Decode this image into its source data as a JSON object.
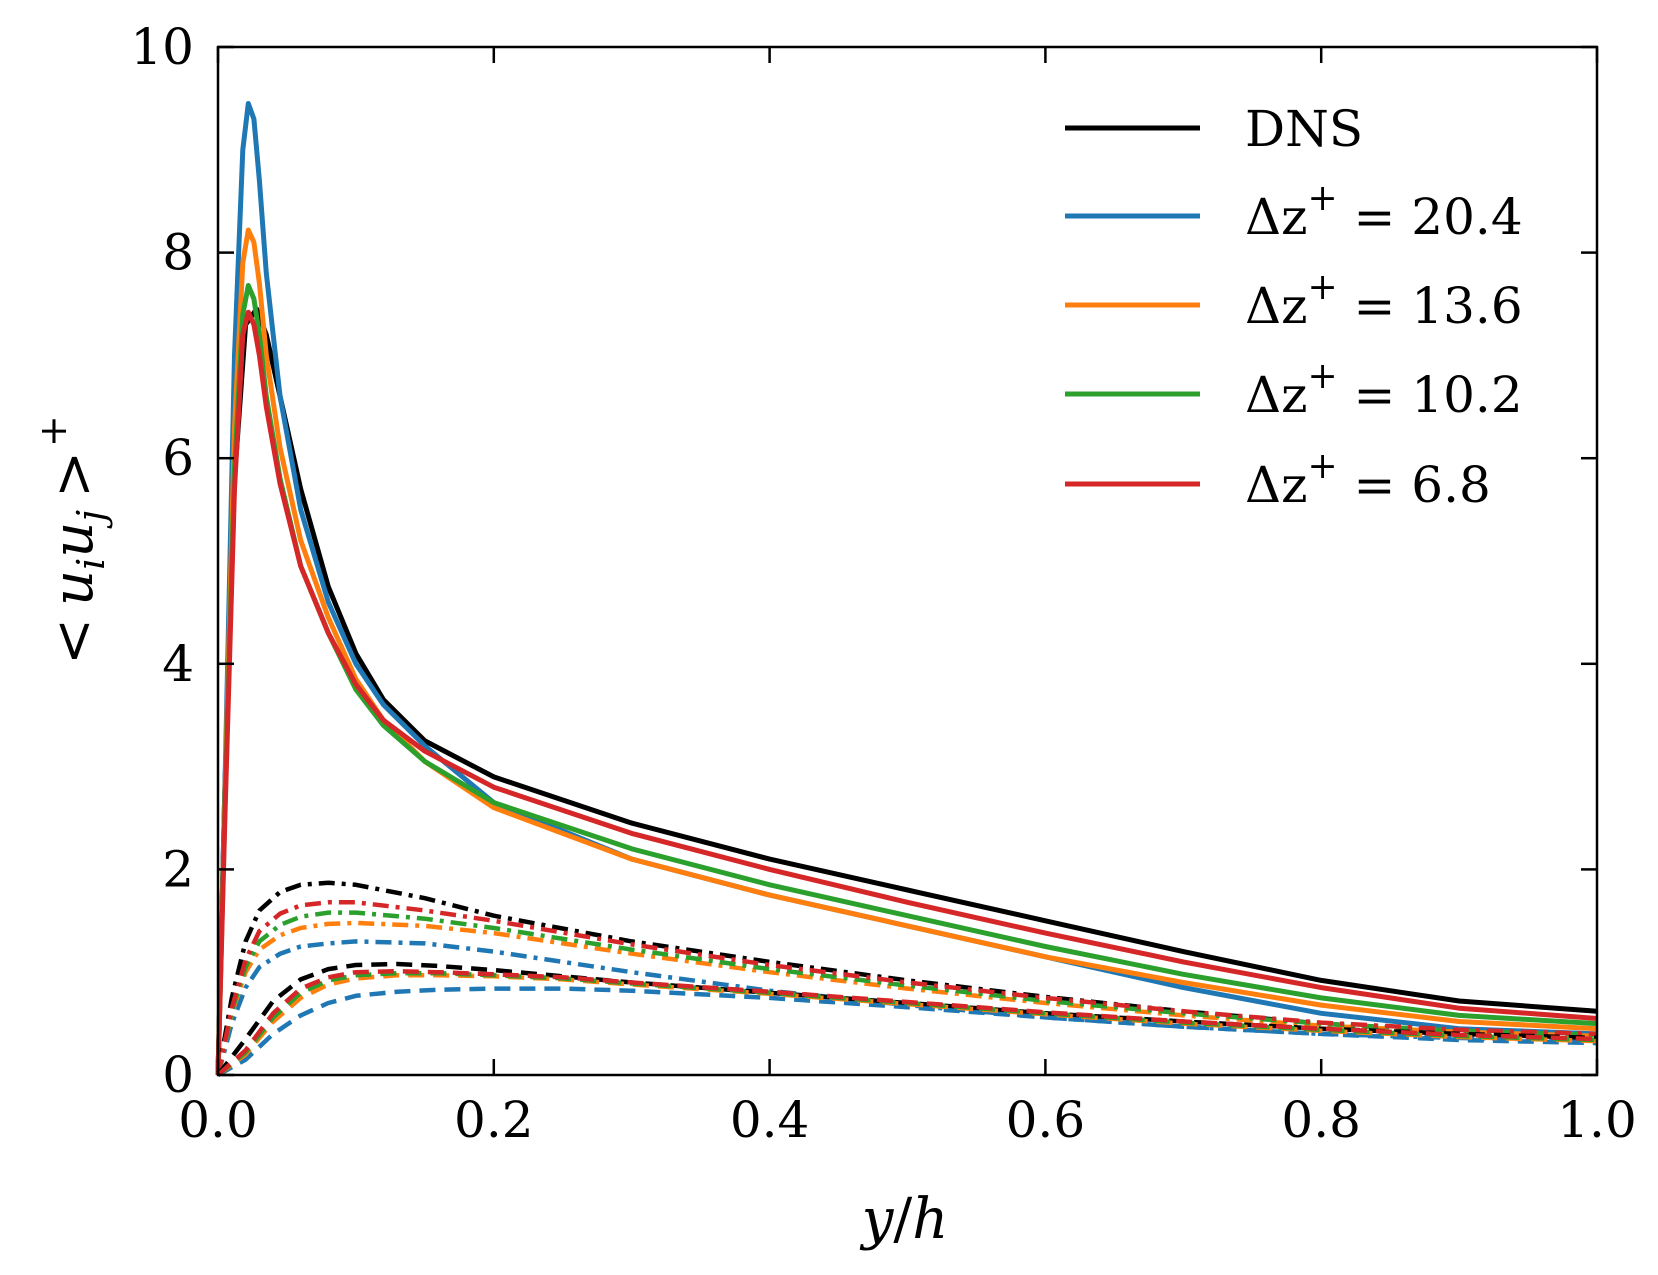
{
  "chart_data": {
    "type": "line",
    "title": "",
    "xlabel": "y/h",
    "ylabel": "< u_i u_j >^+",
    "ylabel_parts": {
      "open": "<",
      "u": "u",
      "i": "i",
      "j": "j",
      "close": ">",
      "sup": "+"
    },
    "xlabel_parts": {
      "y": "y",
      "slash": "/",
      "h": "h"
    },
    "xlim": [
      0.0,
      1.0
    ],
    "ylim": [
      0,
      10
    ],
    "xticks": [
      0.0,
      0.2,
      0.4,
      0.6,
      0.8,
      1.0
    ],
    "xtick_labels": [
      "0.0",
      "0.2",
      "0.4",
      "0.6",
      "0.8",
      "1.0"
    ],
    "yticks": [
      0,
      2,
      4,
      6,
      8,
      10
    ],
    "ytick_labels": [
      "0",
      "2",
      "4",
      "6",
      "8",
      "10"
    ],
    "legend_position": "top-right",
    "legend": [
      {
        "key": "dns",
        "text": "DNS",
        "color": "#000000"
      },
      {
        "key": "dz204",
        "prefix": "Δz",
        "sup": "+",
        "suffix": " = 20.4",
        "color": "#1f77b4"
      },
      {
        "key": "dz136",
        "prefix": "Δz",
        "sup": "+",
        "suffix": " = 13.6",
        "color": "#ff7f0e"
      },
      {
        "key": "dz102",
        "prefix": "Δz",
        "sup": "+",
        "suffix": " = 10.2",
        "color": "#2ca02c"
      },
      {
        "key": "dz68",
        "prefix": "Δz",
        "sup": "+",
        "suffix": " = 6.8",
        "color": "#d62728"
      }
    ],
    "series": [
      {
        "name": "DNS uu",
        "group": "dns",
        "color": "#000000",
        "style": "solid",
        "x": [
          0,
          0.005,
          0.012,
          0.02,
          0.028,
          0.035,
          0.045,
          0.06,
          0.08,
          0.1,
          0.12,
          0.15,
          0.2,
          0.3,
          0.4,
          0.5,
          0.6,
          0.7,
          0.8,
          0.9,
          1.0
        ],
        "y": [
          0,
          2.8,
          5.8,
          7.3,
          7.45,
          7.2,
          6.6,
          5.7,
          4.75,
          4.1,
          3.65,
          3.25,
          2.9,
          2.45,
          2.1,
          1.8,
          1.5,
          1.2,
          0.92,
          0.72,
          0.62
        ]
      },
      {
        "name": "Δz+ = 20.4 uu",
        "group": "dz204",
        "color": "#1f77b4",
        "style": "solid",
        "x": [
          0,
          0.005,
          0.012,
          0.018,
          0.022,
          0.026,
          0.03,
          0.035,
          0.045,
          0.06,
          0.08,
          0.1,
          0.12,
          0.15,
          0.2,
          0.3,
          0.4,
          0.5,
          0.6,
          0.7,
          0.8,
          0.9,
          1.0
        ],
        "y": [
          0,
          2.8,
          7.0,
          9.0,
          9.45,
          9.3,
          8.7,
          7.8,
          6.6,
          5.5,
          4.6,
          4.0,
          3.6,
          3.2,
          2.65,
          2.1,
          1.75,
          1.45,
          1.15,
          0.85,
          0.6,
          0.45,
          0.4
        ]
      },
      {
        "name": "Δz+ = 13.6 uu",
        "group": "dz136",
        "color": "#ff7f0e",
        "style": "solid",
        "x": [
          0,
          0.005,
          0.012,
          0.018,
          0.022,
          0.026,
          0.03,
          0.035,
          0.045,
          0.06,
          0.08,
          0.1,
          0.12,
          0.15,
          0.2,
          0.3,
          0.4,
          0.5,
          0.6,
          0.7,
          0.8,
          0.9,
          1.0
        ],
        "y": [
          0,
          2.7,
          6.3,
          7.9,
          8.22,
          8.1,
          7.7,
          7.0,
          6.1,
          5.2,
          4.45,
          3.85,
          3.45,
          3.05,
          2.6,
          2.1,
          1.75,
          1.45,
          1.15,
          0.9,
          0.68,
          0.52,
          0.45
        ]
      },
      {
        "name": "Δz+ = 10.2 uu",
        "group": "dz102",
        "color": "#2ca02c",
        "style": "solid",
        "x": [
          0,
          0.005,
          0.012,
          0.018,
          0.022,
          0.026,
          0.03,
          0.035,
          0.045,
          0.06,
          0.08,
          0.1,
          0.12,
          0.15,
          0.2,
          0.3,
          0.4,
          0.5,
          0.6,
          0.7,
          0.8,
          0.9,
          1.0
        ],
        "y": [
          0,
          2.6,
          5.9,
          7.4,
          7.68,
          7.55,
          7.2,
          6.6,
          5.8,
          4.95,
          4.3,
          3.75,
          3.4,
          3.05,
          2.65,
          2.2,
          1.85,
          1.55,
          1.25,
          0.98,
          0.75,
          0.58,
          0.5
        ]
      },
      {
        "name": "Δz+ = 6.8 uu",
        "group": "dz68",
        "color": "#d62728",
        "style": "solid",
        "x": [
          0,
          0.005,
          0.012,
          0.018,
          0.022,
          0.026,
          0.03,
          0.035,
          0.045,
          0.06,
          0.08,
          0.1,
          0.12,
          0.15,
          0.2,
          0.3,
          0.4,
          0.5,
          0.6,
          0.7,
          0.8,
          0.9,
          1.0
        ],
        "y": [
          0,
          2.5,
          5.7,
          7.2,
          7.42,
          7.3,
          7.0,
          6.5,
          5.75,
          4.95,
          4.3,
          3.8,
          3.45,
          3.15,
          2.8,
          2.35,
          2.0,
          1.68,
          1.38,
          1.1,
          0.85,
          0.65,
          0.55
        ]
      },
      {
        "name": "DNS ww",
        "group": "dns",
        "color": "#000000",
        "style": "dashdot",
        "x": [
          0,
          0.01,
          0.02,
          0.03,
          0.045,
          0.06,
          0.08,
          0.1,
          0.15,
          0.2,
          0.3,
          0.4,
          0.5,
          0.6,
          0.7,
          0.8,
          0.9,
          1.0
        ],
        "y": [
          0,
          0.75,
          1.3,
          1.6,
          1.78,
          1.85,
          1.87,
          1.85,
          1.72,
          1.55,
          1.3,
          1.1,
          0.92,
          0.76,
          0.62,
          0.5,
          0.42,
          0.38
        ]
      },
      {
        "name": "Δz+ = 20.4 ww",
        "group": "dz204",
        "color": "#1f77b4",
        "style": "dashdot",
        "x": [
          0,
          0.01,
          0.02,
          0.03,
          0.045,
          0.06,
          0.08,
          0.1,
          0.15,
          0.2,
          0.3,
          0.4,
          0.5,
          0.6,
          0.7,
          0.8,
          0.9,
          1.0
        ],
        "y": [
          0,
          0.5,
          0.85,
          1.05,
          1.18,
          1.25,
          1.28,
          1.3,
          1.28,
          1.2,
          1.0,
          0.82,
          0.68,
          0.56,
          0.47,
          0.4,
          0.36,
          0.34
        ]
      },
      {
        "name": "Δz+ = 13.6 ww",
        "group": "dz136",
        "color": "#ff7f0e",
        "style": "dashdot",
        "x": [
          0,
          0.01,
          0.02,
          0.03,
          0.045,
          0.06,
          0.08,
          0.1,
          0.15,
          0.2,
          0.3,
          0.4,
          0.5,
          0.6,
          0.7,
          0.8,
          0.9,
          1.0
        ],
        "y": [
          0,
          0.6,
          1.0,
          1.22,
          1.36,
          1.43,
          1.47,
          1.48,
          1.45,
          1.38,
          1.18,
          1.0,
          0.84,
          0.7,
          0.58,
          0.48,
          0.42,
          0.38
        ]
      },
      {
        "name": "Δz+ = 10.2 ww",
        "group": "dz102",
        "color": "#2ca02c",
        "style": "dashdot",
        "x": [
          0,
          0.01,
          0.02,
          0.03,
          0.045,
          0.06,
          0.08,
          0.1,
          0.15,
          0.2,
          0.3,
          0.4,
          0.5,
          0.6,
          0.7,
          0.8,
          0.9,
          1.0
        ],
        "y": [
          0,
          0.62,
          1.05,
          1.3,
          1.46,
          1.54,
          1.58,
          1.58,
          1.52,
          1.43,
          1.22,
          1.03,
          0.87,
          0.72,
          0.6,
          0.5,
          0.43,
          0.39
        ]
      },
      {
        "name": "Δz+ = 6.8 ww",
        "group": "dz68",
        "color": "#d62728",
        "style": "dashdot",
        "x": [
          0,
          0.01,
          0.02,
          0.03,
          0.045,
          0.06,
          0.08,
          0.1,
          0.15,
          0.2,
          0.3,
          0.4,
          0.5,
          0.6,
          0.7,
          0.8,
          0.9,
          1.0
        ],
        "y": [
          0,
          0.65,
          1.12,
          1.4,
          1.57,
          1.65,
          1.68,
          1.68,
          1.6,
          1.5,
          1.27,
          1.07,
          0.9,
          0.75,
          0.62,
          0.51,
          0.44,
          0.4
        ]
      },
      {
        "name": "DNS vv",
        "group": "dns",
        "color": "#000000",
        "style": "dashed",
        "x": [
          0,
          0.02,
          0.04,
          0.06,
          0.08,
          0.1,
          0.13,
          0.16,
          0.2,
          0.3,
          0.4,
          0.5,
          0.6,
          0.7,
          0.8,
          0.9,
          1.0
        ],
        "y": [
          0,
          0.35,
          0.72,
          0.93,
          1.03,
          1.07,
          1.08,
          1.06,
          1.02,
          0.9,
          0.8,
          0.7,
          0.6,
          0.52,
          0.45,
          0.4,
          0.36
        ]
      },
      {
        "name": "Δz+ = 20.4 vv",
        "group": "dz204",
        "color": "#1f77b4",
        "style": "dashed",
        "x": [
          0,
          0.02,
          0.04,
          0.06,
          0.08,
          0.1,
          0.13,
          0.16,
          0.2,
          0.25,
          0.3,
          0.4,
          0.5,
          0.6,
          0.7,
          0.8,
          0.9,
          1.0
        ],
        "y": [
          0,
          0.15,
          0.4,
          0.58,
          0.7,
          0.77,
          0.81,
          0.83,
          0.84,
          0.84,
          0.82,
          0.75,
          0.66,
          0.56,
          0.47,
          0.4,
          0.34,
          0.31
        ]
      },
      {
        "name": "Δz+ = 13.6 vv",
        "group": "dz136",
        "color": "#ff7f0e",
        "style": "dashed",
        "x": [
          0,
          0.02,
          0.04,
          0.06,
          0.08,
          0.1,
          0.13,
          0.16,
          0.2,
          0.25,
          0.3,
          0.4,
          0.5,
          0.6,
          0.7,
          0.8,
          0.9,
          1.0
        ],
        "y": [
          0,
          0.2,
          0.52,
          0.75,
          0.88,
          0.94,
          0.97,
          0.97,
          0.96,
          0.93,
          0.88,
          0.79,
          0.69,
          0.59,
          0.5,
          0.43,
          0.37,
          0.33
        ]
      },
      {
        "name": "Δz+ = 10.2 vv",
        "group": "dz102",
        "color": "#2ca02c",
        "style": "dashed",
        "x": [
          0,
          0.02,
          0.04,
          0.06,
          0.08,
          0.1,
          0.13,
          0.16,
          0.2,
          0.25,
          0.3,
          0.4,
          0.5,
          0.6,
          0.7,
          0.8,
          0.9,
          1.0
        ],
        "y": [
          0,
          0.22,
          0.56,
          0.8,
          0.92,
          0.97,
          0.99,
          0.99,
          0.97,
          0.94,
          0.89,
          0.8,
          0.7,
          0.6,
          0.51,
          0.44,
          0.38,
          0.34
        ]
      },
      {
        "name": "Δz+ = 6.8 vv",
        "group": "dz68",
        "color": "#d62728",
        "style": "dashed",
        "x": [
          0,
          0.02,
          0.04,
          0.06,
          0.08,
          0.1,
          0.13,
          0.16,
          0.2,
          0.25,
          0.3,
          0.4,
          0.5,
          0.6,
          0.7,
          0.8,
          0.9,
          1.0
        ],
        "y": [
          0,
          0.24,
          0.6,
          0.84,
          0.95,
          1.0,
          1.01,
          1.0,
          0.98,
          0.95,
          0.9,
          0.81,
          0.71,
          0.61,
          0.52,
          0.45,
          0.39,
          0.35
        ]
      }
    ]
  }
}
